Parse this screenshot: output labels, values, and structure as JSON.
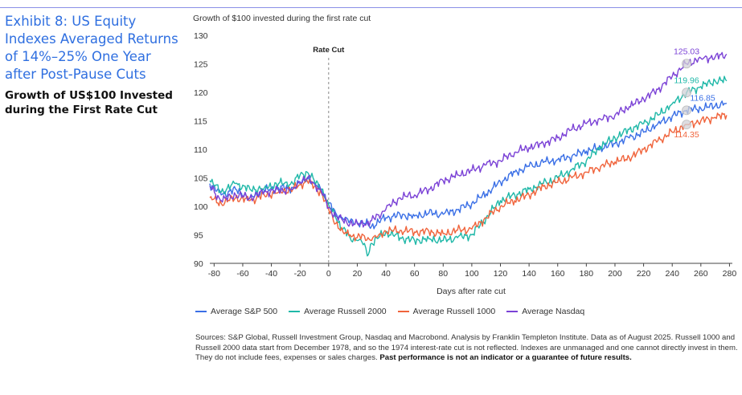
{
  "exhibit": {
    "title": "Exhibit 8: US Equity Indexes Averaged Returns of 14%–25% One Year after Post-Pause Cuts",
    "subtitle": "Growth of US$100 Invested during the First Rate Cut"
  },
  "chart_caption": "Growth of $100 invested during the first rate cut",
  "chart_data": {
    "type": "line",
    "title": "Growth of $100 invested during the first rate cut",
    "xlabel": "Days after rate cut",
    "ylabel": "",
    "xlim": [
      -83,
      282
    ],
    "ylim": [
      90,
      130
    ],
    "x_ticks": [
      -80,
      -60,
      -40,
      -20,
      0,
      20,
      40,
      60,
      80,
      100,
      120,
      140,
      160,
      180,
      200,
      220,
      240,
      260,
      280
    ],
    "y_ticks": [
      90,
      95,
      100,
      105,
      110,
      115,
      120,
      125,
      130
    ],
    "grid": false,
    "legend_position": "bottom",
    "annotation": {
      "label": "Rate Cut",
      "x": 0
    },
    "series": [
      {
        "name": "Average S&P 500",
        "color": "#3a6fe6",
        "x": [
          -83,
          -75,
          -65,
          -55,
          -45,
          -35,
          -25,
          -20,
          -15,
          -10,
          -5,
          0,
          5,
          10,
          15,
          20,
          25,
          30,
          35,
          40,
          50,
          60,
          70,
          80,
          90,
          100,
          110,
          120,
          130,
          140,
          150,
          160,
          170,
          180,
          190,
          200,
          210,
          220,
          230,
          240,
          250,
          260,
          270,
          278
        ],
        "y": [
          104.0,
          102.0,
          103.0,
          101.5,
          102.8,
          103.2,
          103.3,
          104.0,
          104.8,
          104.0,
          102.8,
          100.5,
          98.8,
          97.8,
          97.5,
          97.2,
          97.0,
          96.5,
          97.3,
          98.0,
          98.5,
          98.3,
          98.8,
          98.6,
          99.4,
          100.5,
          102.2,
          104.3,
          106.0,
          107.0,
          107.7,
          108.2,
          108.8,
          109.7,
          110.3,
          111.0,
          112.0,
          113.0,
          114.5,
          115.8,
          116.85,
          117.2,
          117.6,
          118.1
        ]
      },
      {
        "name": "Average Russell 2000",
        "color": "#1fb8a8",
        "x": [
          -83,
          -75,
          -65,
          -55,
          -45,
          -35,
          -25,
          -20,
          -15,
          -10,
          -5,
          0,
          5,
          10,
          15,
          20,
          25,
          27,
          30,
          35,
          40,
          50,
          60,
          70,
          80,
          90,
          100,
          110,
          120,
          130,
          140,
          150,
          160,
          170,
          180,
          190,
          200,
          210,
          220,
          230,
          240,
          250,
          260,
          270,
          278
        ],
        "y": [
          104.5,
          102.5,
          104.0,
          103.0,
          103.2,
          104.0,
          104.0,
          105.5,
          106.0,
          104.5,
          103.0,
          100.3,
          98.0,
          96.0,
          94.5,
          94.0,
          93.5,
          91.3,
          93.5,
          94.5,
          95.5,
          94.5,
          94.0,
          94.3,
          94.0,
          94.5,
          95.0,
          98.0,
          101.0,
          102.0,
          103.0,
          104.0,
          105.0,
          106.5,
          108.0,
          110.5,
          112.0,
          113.5,
          114.5,
          116.0,
          118.0,
          119.96,
          121.0,
          122.0,
          122.0
        ]
      },
      {
        "name": "Average Russell 1000",
        "color": "#f0643c",
        "x": [
          -83,
          -75,
          -65,
          -55,
          -45,
          -35,
          -25,
          -20,
          -15,
          -10,
          -5,
          0,
          5,
          10,
          15,
          20,
          25,
          30,
          35,
          40,
          50,
          60,
          70,
          80,
          90,
          100,
          110,
          120,
          130,
          140,
          150,
          160,
          170,
          180,
          190,
          200,
          210,
          220,
          230,
          240,
          250,
          260,
          270,
          278
        ],
        "y": [
          101.5,
          100.5,
          101.5,
          101.0,
          102.0,
          102.5,
          103.0,
          103.8,
          104.5,
          103.5,
          102.3,
          99.5,
          97.0,
          95.5,
          95.0,
          94.5,
          94.8,
          94.0,
          95.0,
          95.6,
          95.8,
          95.5,
          95.6,
          95.2,
          95.8,
          96.0,
          98.0,
          100.0,
          101.0,
          102.0,
          103.5,
          104.2,
          105.0,
          106.0,
          107.0,
          107.8,
          108.5,
          110.0,
          111.5,
          113.0,
          114.35,
          115.0,
          115.6,
          116.0
        ]
      },
      {
        "name": "Average Nasdaq",
        "color": "#7b42d6",
        "x": [
          -83,
          -75,
          -65,
          -55,
          -45,
          -35,
          -25,
          -20,
          -15,
          -10,
          -5,
          0,
          5,
          10,
          15,
          20,
          25,
          30,
          35,
          40,
          50,
          60,
          70,
          80,
          90,
          100,
          110,
          120,
          130,
          140,
          150,
          160,
          170,
          180,
          190,
          200,
          210,
          220,
          230,
          240,
          250,
          260,
          270,
          278
        ],
        "y": [
          103.5,
          101.0,
          102.0,
          101.5,
          102.5,
          102.8,
          103.0,
          104.3,
          105.0,
          104.0,
          102.5,
          99.8,
          98.3,
          97.5,
          97.0,
          97.0,
          96.8,
          97.5,
          98.5,
          99.5,
          101.5,
          102.0,
          103.0,
          104.5,
          105.5,
          106.3,
          107.3,
          108.0,
          109.5,
          110.3,
          111.0,
          112.0,
          113.5,
          114.5,
          115.3,
          116.0,
          117.5,
          118.8,
          120.5,
          122.8,
          125.03,
          126.0,
          126.2,
          126.7
        ]
      }
    ],
    "end_labels": [
      {
        "series": "Average Nasdaq",
        "text": "125.03",
        "x": 250,
        "y": 125.03
      },
      {
        "series": "Average Russell 2000",
        "text": "119.96",
        "x": 250,
        "y": 119.96
      },
      {
        "series": "Average S&P 500",
        "text": "116.85",
        "x": 250,
        "y": 116.85
      },
      {
        "series": "Average Russell 1000",
        "text": "114.35",
        "x": 250,
        "y": 114.35
      }
    ]
  },
  "source_note": {
    "text": "Sources: S&P Global, Russell Investment Group, Nasdaq and Macrobond. Analysis by Franklin Templeton Institute. Data as of August 2025. Russell 1000 and Russell 2000 data start from December 1978, and so the 1974 interest-rate cut is not reflected. Indexes are unmanaged and one cannot directly invest in them. They do not include fees, expenses or sales charges.",
    "bold": "Past performance is not an indicator or a guarantee of future results."
  }
}
